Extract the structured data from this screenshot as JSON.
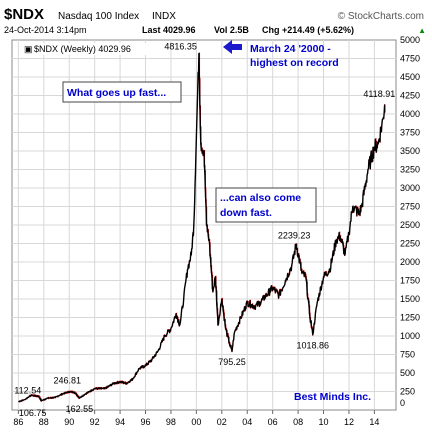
{
  "header": {
    "symbol": "$NDX",
    "name": "Nasdaq 100 Index",
    "exchange": "INDX",
    "source": "© StockCharts.com",
    "datetime": "24-Oct-2014 3:14pm",
    "last": "Last 4029.96",
    "vol": "Vol 2.5B",
    "chg": "Chg +214.49 (+5.62%)",
    "chg_arrow": "▲",
    "legend": "$NDX (Weekly) 4029.96"
  },
  "annotations": {
    "peak_note_1": "March 24 '2000 -",
    "peak_note_2": "highest on record",
    "box1": "What goes up fast...",
    "box2_line1": "...can also come",
    "box2_line2": "down fast.",
    "credit": "Best Minds Inc."
  },
  "colors": {
    "price_line": "#000000",
    "down_bars": "#cc0000",
    "annotation_text": "#0000cc",
    "grid": "#d8d8d8"
  },
  "chart_data": {
    "type": "line",
    "title": "$NDX Nasdaq 100 Index",
    "series": [
      {
        "name": "$NDX (Weekly)",
        "x": [
          1986.0,
          1986.5,
          1987.0,
          1987.6,
          1987.8,
          1988.3,
          1988.9,
          1989.5,
          1990.0,
          1990.4,
          1990.8,
          1991.3,
          1992.0,
          1992.8,
          1993.5,
          1994.0,
          1994.5,
          1995.0,
          1995.5,
          1996.0,
          1996.5,
          1997.0,
          1997.5,
          1998.0,
          1998.4,
          1998.7,
          1999.0,
          1999.3,
          1999.6,
          1999.8,
          2000.0,
          2000.2,
          2000.35,
          2000.6,
          2000.8,
          2001.0,
          2001.3,
          2001.5,
          2001.7,
          2002.0,
          2002.3,
          2002.6,
          2002.8,
          2003.0,
          2003.5,
          2004.0,
          2004.6,
          2005.0,
          2005.5,
          2006.0,
          2006.5,
          2007.0,
          2007.5,
          2007.85,
          2008.3,
          2008.6,
          2008.9,
          2009.15,
          2009.5,
          2010.0,
          2010.5,
          2011.0,
          2011.3,
          2011.7,
          2012.0,
          2012.3,
          2012.8,
          2013.0,
          2013.5,
          2014.0,
          2014.3,
          2014.7,
          2014.8,
          2014.82
        ],
        "values": [
          112.54,
          140,
          200,
          185,
          125,
          160,
          170,
          220,
          246.81,
          240,
          162.55,
          220,
          290,
          290,
          360,
          380,
          360,
          420,
          560,
          600,
          680,
          800,
          1000,
          1100,
          1300,
          1150,
          1500,
          1900,
          2100,
          2500,
          3700,
          4816.35,
          3600,
          3500,
          2500,
          2300,
          1600,
          1800,
          1150,
          1500,
          1100,
          900,
          795.25,
          1050,
          1250,
          1450,
          1400,
          1450,
          1550,
          1650,
          1550,
          1750,
          1950,
          2239.23,
          1850,
          1800,
          1300,
          1018.86,
          1450,
          1800,
          1900,
          2300,
          2350,
          2100,
          2400,
          2750,
          2650,
          2750,
          3250,
          3550,
          3600,
          3950,
          4118.91,
          4029.96
        ]
      }
    ],
    "annotated_points": [
      {
        "x": 1986.0,
        "y": 112.54,
        "label": "112.54"
      },
      {
        "x": 1986.2,
        "y": 106.75,
        "label": "106.75"
      },
      {
        "x": 1990.0,
        "y": 246.81,
        "label": "246.81"
      },
      {
        "x": 1990.8,
        "y": 162.55,
        "label": "162.55"
      },
      {
        "x": 2000.2,
        "y": 4816.35,
        "label": "4816.35"
      },
      {
        "x": 2002.8,
        "y": 795.25,
        "label": "795.25"
      },
      {
        "x": 2007.85,
        "y": 2239.23,
        "label": "2239.23"
      },
      {
        "x": 2009.15,
        "y": 1018.86,
        "label": "1018.86"
      },
      {
        "x": 2014.7,
        "y": 4118.91,
        "label": "4118.91"
      }
    ],
    "xticks": [
      1986,
      1988,
      1990,
      1992,
      1994,
      1996,
      1998,
      2000,
      2002,
      2004,
      2006,
      2008,
      2010,
      2012,
      2014
    ],
    "xtick_labels": [
      "86",
      "88",
      "90",
      "92",
      "94",
      "96",
      "98",
      "00",
      "02",
      "04",
      "06",
      "08",
      "10",
      "12",
      "14"
    ],
    "yticks": [
      0,
      250,
      500,
      750,
      1000,
      1250,
      1500,
      1750,
      2000,
      2250,
      2500,
      2750,
      3000,
      3250,
      3500,
      3750,
      4000,
      4250,
      4500,
      4750,
      5000
    ],
    "ytick_labels": [
      "0",
      "250",
      "500",
      "750",
      "1000",
      "1250",
      "1500",
      "1750",
      "2000",
      "2250",
      "2500",
      "2750",
      "3000",
      "3250",
      "3500",
      "3750",
      "4000",
      "4250",
      "4500",
      "4750",
      "5000"
    ],
    "xlim": [
      1985.5,
      2015.7
    ],
    "ylim": [
      0,
      5000
    ],
    "grid": true,
    "legend": "top-left"
  }
}
